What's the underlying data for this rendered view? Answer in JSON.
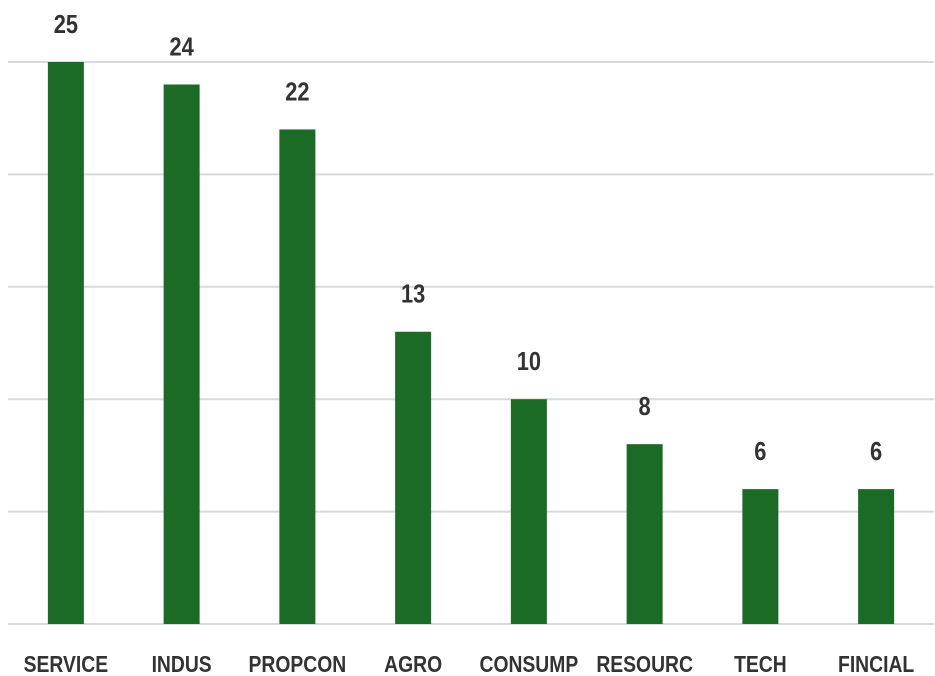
{
  "chart_data": {
    "type": "bar",
    "categories": [
      "SERVICE",
      "INDUS",
      "PROPCON",
      "AGRO",
      "CONSUMP",
      "RESOURC",
      "TECH",
      "FINCIAL"
    ],
    "values": [
      25,
      24,
      22,
      13,
      10,
      8,
      6,
      6
    ],
    "color": "#1b6b27",
    "ylim": [
      0,
      25
    ],
    "yticks": [
      0,
      5,
      10,
      15,
      20,
      25
    ],
    "grid": true
  }
}
